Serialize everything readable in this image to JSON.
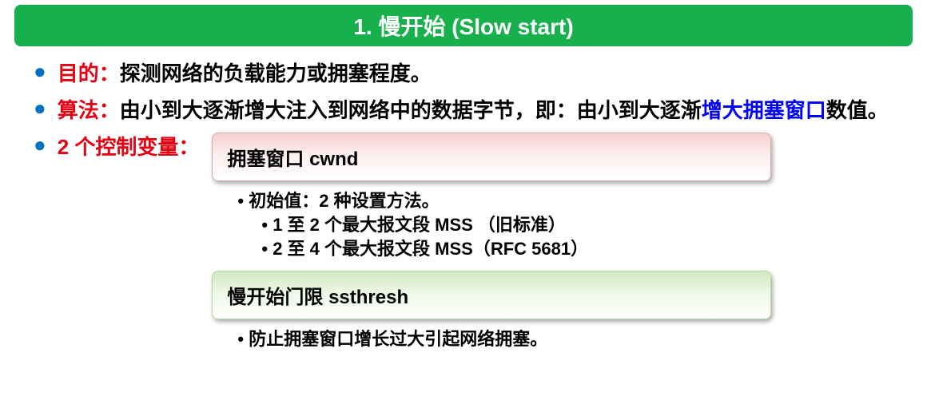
{
  "header": {
    "title": "1. 慢开始 (Slow start)"
  },
  "colors": {
    "header_bg": "#17b04c",
    "header_text": "#ffffff",
    "bullet_dot": "#0070c0",
    "label_red": "#e60012",
    "inline_blue": "#0000ff",
    "text": "#000000",
    "red_box_top": "#f7cfcf",
    "green_box_top": "#d0eac0"
  },
  "b1": {
    "label": "目的：",
    "text": "探测网络的负载能力或拥塞程度。"
  },
  "b2": {
    "label": "算法：",
    "text_a": "由小到大逐渐增大注入到网络中的数据字节，即：由小到大逐渐",
    "blue": "增大拥塞窗口",
    "text_b": "数值。"
  },
  "b3": {
    "label": "2 个控制变量："
  },
  "box1": {
    "title": "拥塞窗口 cwnd",
    "s1": "• 初始值：2 种设置方法。",
    "s2": "• 1 至 2 个最大报文段 MSS （旧标准）",
    "s3": "• 2 至 4 个最大报文段 MSS（RFC 5681）"
  },
  "box2": {
    "title": "慢开始门限 ssthresh",
    "s1": "• 防止拥塞窗口增长过大引起网络拥塞。"
  }
}
